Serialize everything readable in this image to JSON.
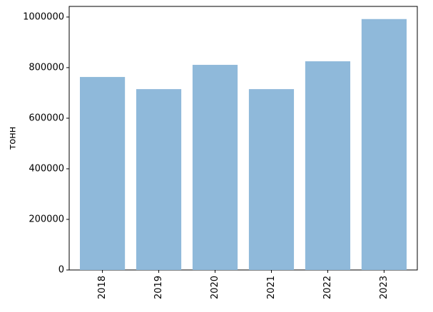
{
  "chart_data": {
    "type": "bar",
    "ylabel": "тонн",
    "categories": [
      "2018",
      "2019",
      "2020",
      "2021",
      "2022",
      "2023"
    ],
    "values": [
      763000,
      715000,
      811000,
      715000,
      825000,
      992000
    ],
    "color": "#8fb9da",
    "ylim": [
      0,
      1042000
    ],
    "yticks": [
      0,
      200000,
      400000,
      600000,
      800000,
      1000000
    ],
    "grid": false
  }
}
